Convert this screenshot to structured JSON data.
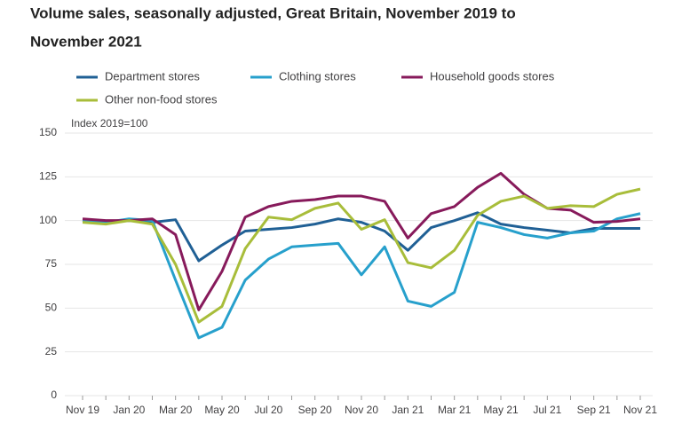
{
  "chart_data": {
    "type": "line",
    "title": "Volume sales, seasonally adjusted, Great Britain, November 2019 to",
    "title_line2": "November 2021",
    "y_axis_label": "Index 2019=100",
    "categories": [
      "Nov 19",
      null,
      "Jan 20",
      null,
      "Mar 20",
      null,
      "May 20",
      null,
      "Jul 20",
      null,
      "Sep 20",
      null,
      "Nov 20",
      null,
      "Jan 21",
      null,
      "Mar 21",
      null,
      "May 21",
      null,
      "Jul 21",
      null,
      "Sep 21",
      null,
      "Nov 21"
    ],
    "series": [
      {
        "name": "Department stores",
        "color": "#206095",
        "values": [
          100,
          99,
          100,
          99,
          100.5,
          77,
          86,
          94,
          95,
          96,
          98,
          101,
          99,
          94,
          83,
          96,
          100,
          104.5,
          98,
          96,
          94.5,
          93,
          95.5,
          95.5,
          95.5
        ]
      },
      {
        "name": "Clothing stores",
        "color": "#27a0cc",
        "values": [
          100,
          99,
          101,
          100,
          66,
          33,
          39,
          66,
          78,
          85,
          86,
          87,
          69,
          85,
          54,
          51,
          59,
          99,
          96,
          92,
          90,
          93,
          94,
          101,
          104
        ]
      },
      {
        "name": "Household goods stores",
        "color": "#871a5b",
        "values": [
          101,
          100,
          100,
          101,
          92,
          49,
          71,
          102,
          108,
          111,
          112,
          114,
          114,
          111,
          90,
          104,
          108,
          119,
          127,
          115,
          107,
          106,
          99,
          99.5,
          101
        ]
      },
      {
        "name": "Other non-food stores",
        "color": "#a8bd3a",
        "values": [
          99,
          98,
          100,
          98,
          75,
          42,
          51,
          84,
          102,
          100.5,
          107,
          110,
          95,
          100.5,
          76,
          73,
          83,
          103,
          111,
          114,
          107,
          108.5,
          108,
          115,
          118
        ]
      }
    ],
    "ylim": [
      0,
      150
    ],
    "yticks": [
      0,
      25,
      50,
      75,
      100,
      125,
      150
    ],
    "grid": true
  }
}
